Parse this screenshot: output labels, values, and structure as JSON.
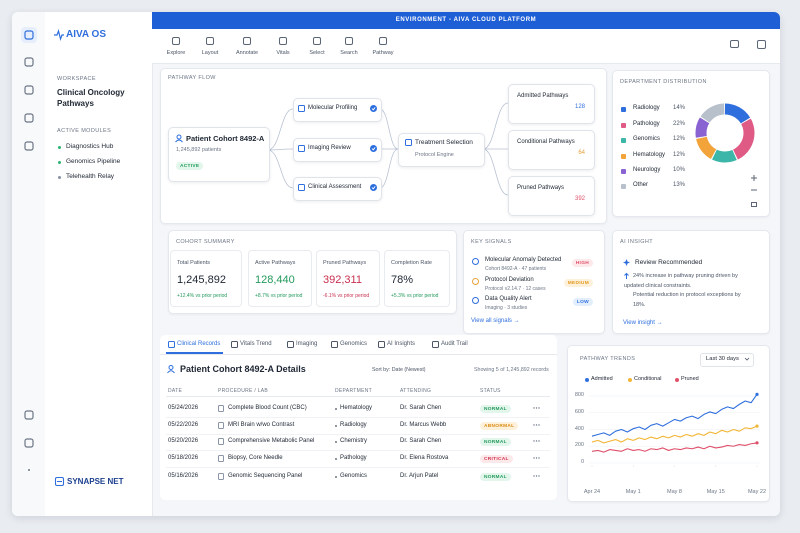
{
  "sidebar": {
    "brand": "AIVA OS",
    "workspace_label": "WORKSPACE",
    "workspace": "Clinical Oncology Pathways",
    "modules_label": "ACTIVE MODULES",
    "modules": [
      "Diagnostics Hub",
      "Genomics Pipeline",
      "Telehealth Relay"
    ],
    "footer": "SYNAPSE NET"
  },
  "header": {
    "banner": "ENVIRONMENT - AIVA CLOUD PLATFORM",
    "tools": [
      "Explore",
      "Layout",
      "Annotate",
      "Vitals",
      "Select",
      "Search",
      "Pathway"
    ]
  },
  "pathway": {
    "label": "PATHWAY FLOW",
    "cohort": {
      "title": "Patient Cohort 8492-A",
      "patients": "1,245,892 patients",
      "status": "ACTIVE"
    },
    "steps": [
      "Molecular Profiling",
      "Imaging Review",
      "Clinical Assessment"
    ],
    "selection": {
      "title": "Treatment Selection",
      "sub": "Protocol Engine"
    },
    "outcomes": [
      {
        "name": "Admitted Pathways",
        "count": 128
      },
      {
        "name": "Conditional Pathways",
        "count": 64
      },
      {
        "name": "Pruned Pathways",
        "count": 392
      }
    ]
  },
  "distribution": {
    "title": "DEPARTMENT DISTRIBUTION",
    "type": "pie",
    "categories": [
      "Radiology",
      "Pathology",
      "Genomics",
      "Hematology",
      "Neurology",
      "Other"
    ],
    "values": [
      14,
      22,
      12,
      12,
      10,
      13
    ],
    "value_labels": [
      "14%",
      "22%",
      "12%",
      "12%",
      "10%",
      "13%"
    ],
    "colors": [
      "#2f6fdd",
      "#e05a86",
      "#3cb6a8",
      "#f2a33a",
      "#8a63d2",
      "#b8c0cc"
    ]
  },
  "summary": {
    "label": "COHORT SUMMARY",
    "cards": [
      {
        "label": "Total Patients",
        "value": "1,245,892",
        "delta": "+12.4% vs prior period"
      },
      {
        "label": "Active Pathways",
        "value": "128,440",
        "delta": "+8.7% vs prior period"
      },
      {
        "label": "Pruned Pathways",
        "value": "392,311",
        "delta": "-6.1% vs prior period"
      },
      {
        "label": "Completion Rate",
        "value": "78%",
        "delta": "+5.3% vs prior period"
      }
    ]
  },
  "signals": {
    "label": "KEY SIGNALS",
    "items": [
      {
        "title": "Molecular Anomaly Detected",
        "sub": "Cohort 8492-A · 47 patients",
        "level": "HIGH"
      },
      {
        "title": "Protocol Deviation",
        "sub": "Protocol v2.14.7 · 12 cases",
        "level": "MEDIUM"
      },
      {
        "title": "Data Quality Alert",
        "sub": "Imaging · 3 studies",
        "level": "LOW"
      }
    ],
    "link": "View all signals →"
  },
  "insight": {
    "label": "AI INSIGHT",
    "title": "Review Recommended",
    "body": "24% increase in pathway pruning driven by updated clinical constraints.",
    "body2": "Potential reduction in protocol exceptions by 18%.",
    "link": "View insight →"
  },
  "tabs": [
    "Clinical Records",
    "Vitals Trend",
    "Imaging",
    "Genomics",
    "AI Insights",
    "Audit Trail"
  ],
  "table": {
    "title": "Patient Cohort 8492-A Details",
    "sort": "Sort by: Date (Newest)",
    "showing": "Showing 5 of 1,245,892 records",
    "columns": [
      "DATE",
      "PROCEDURE / LAB",
      "DEPARTMENT",
      "ATTENDING",
      "STATUS"
    ],
    "rows": [
      [
        "05/24/2026",
        "Complete Blood Count (CBC)",
        "Hematology",
        "Dr. Sarah Chen",
        "NORMAL"
      ],
      [
        "05/22/2026",
        "MRI Brain w/wo Contrast",
        "Radiology",
        "Dr. Marcus Webb",
        "ABNORMAL"
      ],
      [
        "05/20/2026",
        "Comprehensive Metabolic Panel",
        "Chemistry",
        "Dr. Sarah Chen",
        "NORMAL"
      ],
      [
        "05/18/2026",
        "Biopsy, Core Needle",
        "Pathology",
        "Dr. Elena Rostova",
        "CRITICAL"
      ],
      [
        "05/16/2026",
        "Genomic Sequencing Panel",
        "Genomics",
        "Dr. Arjun Patel",
        "NORMAL"
      ]
    ]
  },
  "trends": {
    "title": "PATHWAY TRENDS",
    "range": "Last 30 days",
    "chart": {
      "type": "line",
      "x": [
        0,
        1,
        2,
        3,
        4,
        5,
        6,
        7,
        8,
        9,
        10,
        11,
        12,
        13,
        14,
        15,
        16,
        17,
        18,
        19,
        20,
        21,
        22,
        23,
        24,
        25,
        26,
        27,
        28
      ],
      "xlim": [
        0,
        28
      ],
      "xticks": [
        {
          "value": 0,
          "label": "Apr 24"
        },
        {
          "value": 7,
          "label": "May 1"
        },
        {
          "value": 14,
          "label": "May 8"
        },
        {
          "value": 21,
          "label": "May 15"
        },
        {
          "value": 28,
          "label": "May 22"
        }
      ],
      "ylim": [
        0,
        900
      ],
      "yticks": [
        0,
        200,
        400,
        600,
        800
      ],
      "grid": true,
      "series": [
        {
          "name": "Admitted",
          "color": "#2f6fdd",
          "values": [
            320,
            340,
            360,
            330,
            380,
            400,
            370,
            410,
            430,
            400,
            450,
            470,
            440,
            480,
            520,
            500,
            540,
            560,
            530,
            580,
            610,
            590,
            640,
            670,
            650,
            700,
            740,
            720,
            820
          ]
        },
        {
          "name": "Conditional",
          "color": "#f2b636",
          "values": [
            250,
            270,
            240,
            260,
            280,
            250,
            290,
            270,
            300,
            280,
            310,
            290,
            320,
            300,
            330,
            310,
            340,
            320,
            350,
            330,
            370,
            350,
            390,
            370,
            400,
            380,
            420,
            410,
            440
          ]
        },
        {
          "name": "Pruned",
          "color": "#e0506a",
          "values": [
            140,
            150,
            130,
            160,
            150,
            140,
            170,
            150,
            160,
            140,
            170,
            160,
            180,
            150,
            170,
            160,
            180,
            170,
            190,
            170,
            200,
            180,
            190,
            210,
            200,
            220,
            210,
            230,
            240
          ]
        }
      ]
    }
  }
}
